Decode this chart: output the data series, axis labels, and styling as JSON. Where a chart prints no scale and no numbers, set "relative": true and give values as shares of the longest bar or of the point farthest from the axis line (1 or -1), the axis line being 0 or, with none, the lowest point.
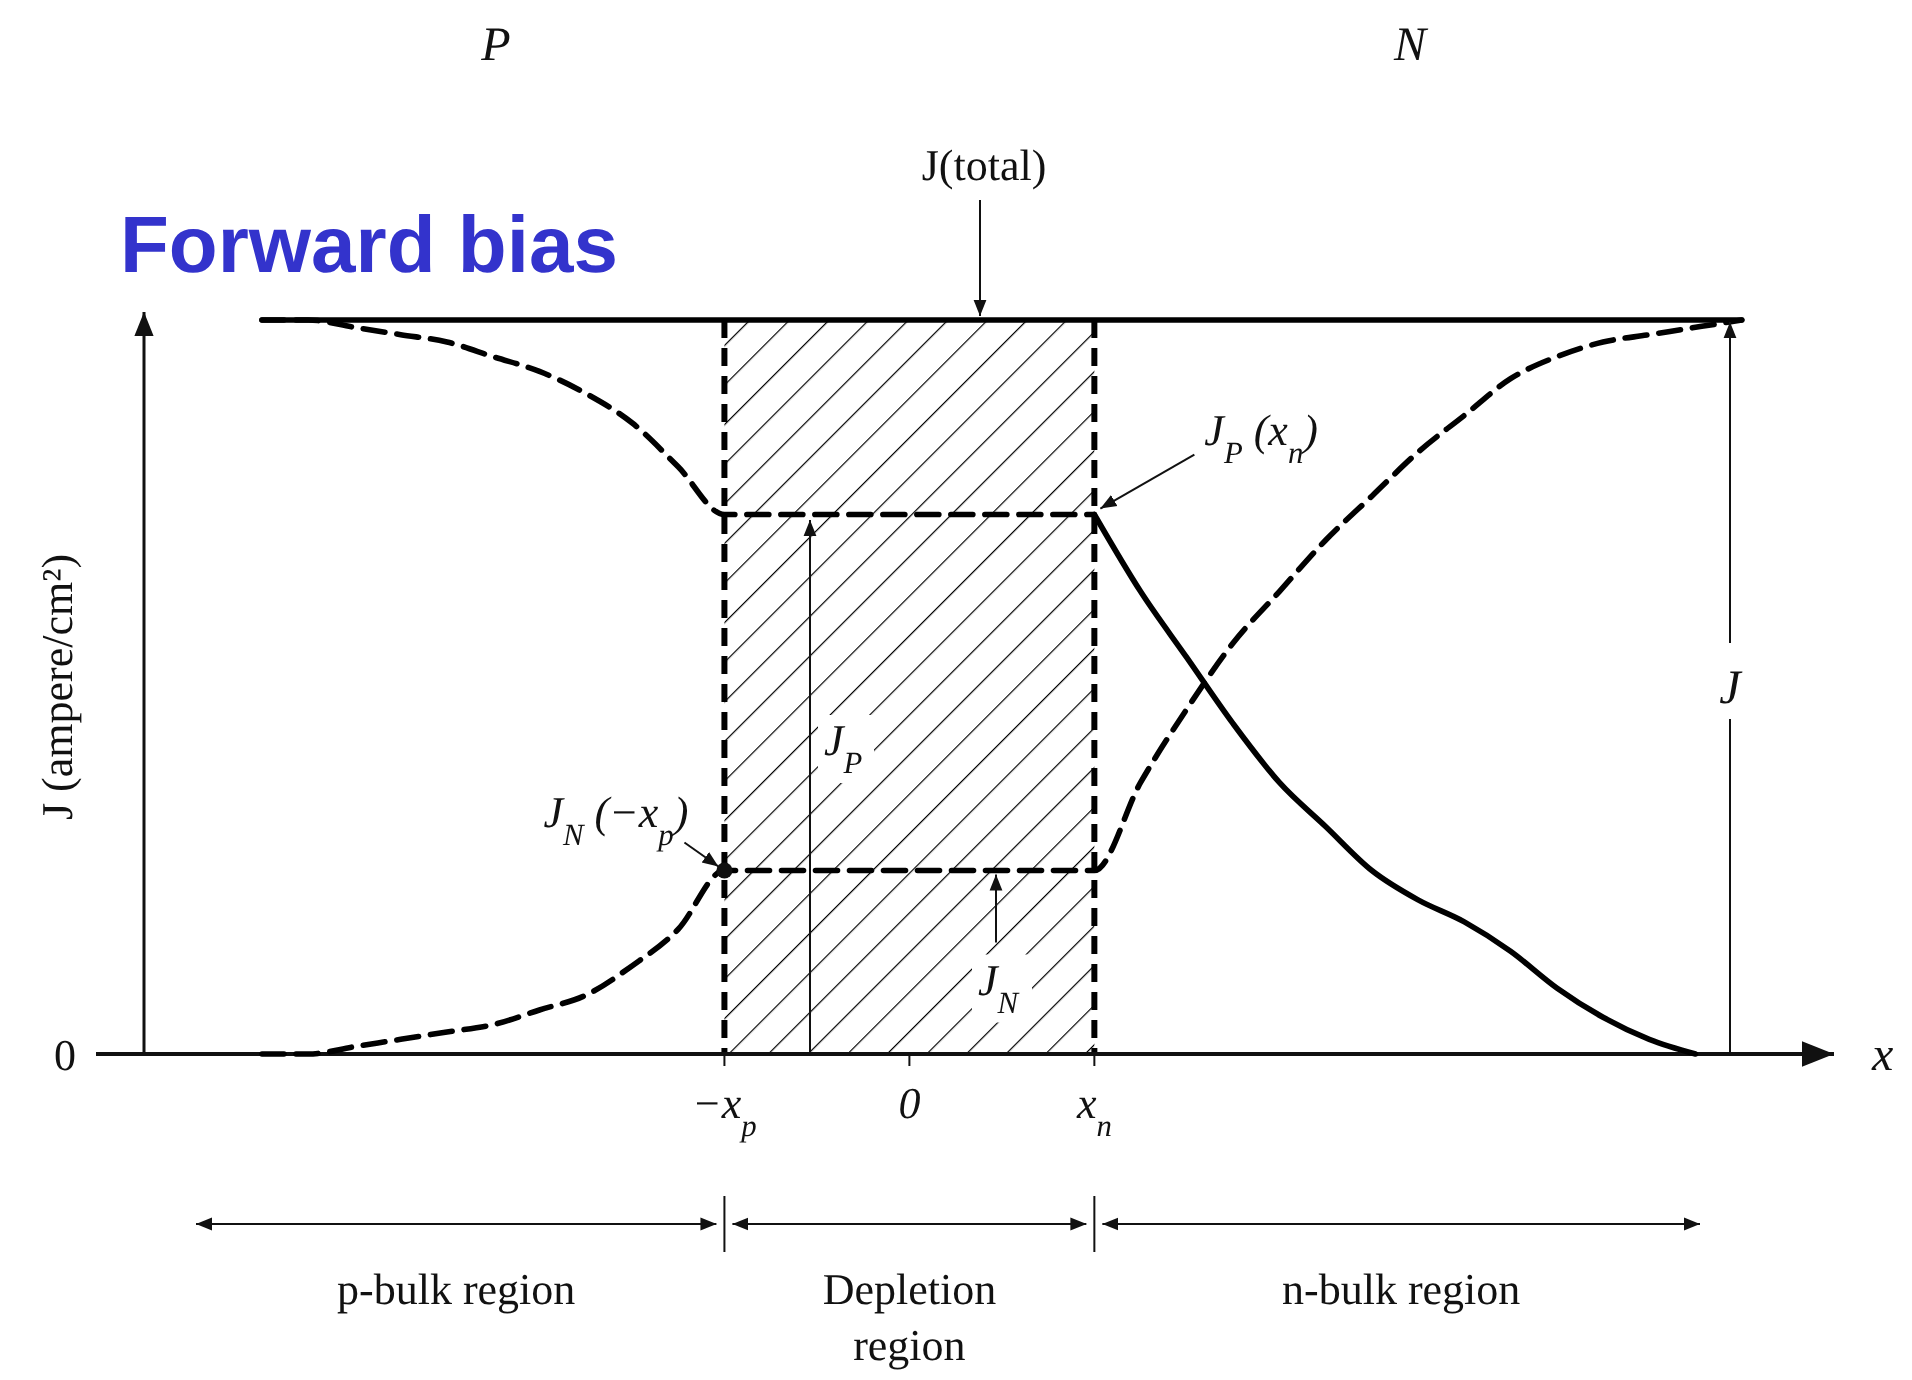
{
  "chart_data": {
    "type": "line",
    "title": "Forward bias",
    "xlabel": "x",
    "ylabel": "J (ampere/cm²)",
    "relative": true,
    "categories": [
      null,
      null,
      null,
      null,
      null,
      null,
      null,
      null,
      null,
      null,
      "−x$_{p}$",
      null,
      null,
      null,
      "0",
      null,
      null,
      null,
      "x$_{n}$",
      null,
      null,
      null,
      null,
      null,
      null,
      null,
      null,
      null,
      null,
      null,
      null,
      null,
      null,
      null
    ],
    "series": [
      {
        "color": "#000000",
        "line_style": "solid",
        "values": [
          1,
          1,
          1,
          1,
          1,
          1,
          1,
          1,
          1,
          1,
          1,
          1,
          1,
          1,
          1,
          1,
          1,
          1,
          1,
          1,
          1,
          1,
          1,
          1,
          1,
          1,
          1,
          1,
          1,
          1,
          1,
          1,
          1,
          null
        ]
      },
      {
        "color": "#000000",
        "line_style": "dashed",
        "values": [
          1,
          1,
          0.99,
          0.98,
          0.97,
          0.95,
          0.93,
          0.9,
          0.86,
          0.8,
          0.735,
          0.735,
          0.735,
          0.735,
          0.735,
          0.735,
          0.735,
          0.735,
          0.735,
          null,
          null,
          null,
          null,
          null,
          null,
          null,
          null,
          null,
          null,
          null,
          null,
          null,
          null,
          null
        ]
      },
      {
        "color": "#000000",
        "line_style": "solid",
        "values": [
          null,
          null,
          null,
          null,
          null,
          null,
          null,
          null,
          null,
          null,
          null,
          null,
          null,
          null,
          null,
          null,
          null,
          null,
          0.735,
          0.63,
          0.54,
          0.45,
          0.37,
          0.31,
          0.25,
          0.21,
          0.18,
          0.14,
          0.09,
          0.05,
          0.02,
          0,
          null,
          null
        ]
      },
      {
        "color": "#000000",
        "line_style": "dashed",
        "values": [
          0,
          0,
          0.01,
          0.02,
          0.03,
          0.04,
          0.06,
          0.08,
          0.12,
          0.17,
          0.25,
          0.25,
          0.25,
          0.25,
          0.25,
          0.25,
          0.25,
          0.25,
          0.25,
          0.37,
          0.47,
          0.56,
          0.63,
          0.7,
          0.76,
          0.82,
          0.87,
          0.92,
          0.95,
          0.97,
          0.98,
          0.99,
          1,
          null
        ]
      }
    ],
    "bands": [
      {
        "axis": "x",
        "from": "−x$_{p}$",
        "to": "x$_{n}$",
        "color": "#000000"
      }
    ],
    "annotations": [
      {
        "text": "J(total)",
        "y": 1
      },
      {
        "text": "J$_{P}$ (x$_{n}$)",
        "x": "x$_{n}$",
        "y": 0.735
      },
      {
        "text": "J$_{N}$ (−x$_{p}$)",
        "x": "−x$_{p}$",
        "y": 0.25
      },
      "J$_{P}$",
      {
        "text": "J$_{N}$",
        "y": 0.25
      },
      {
        "text": "J",
        "y": 1
      },
      "P",
      "N",
      "0",
      "p-bulk region",
      "Depletion region",
      "n-bulk region"
    ]
  }
}
